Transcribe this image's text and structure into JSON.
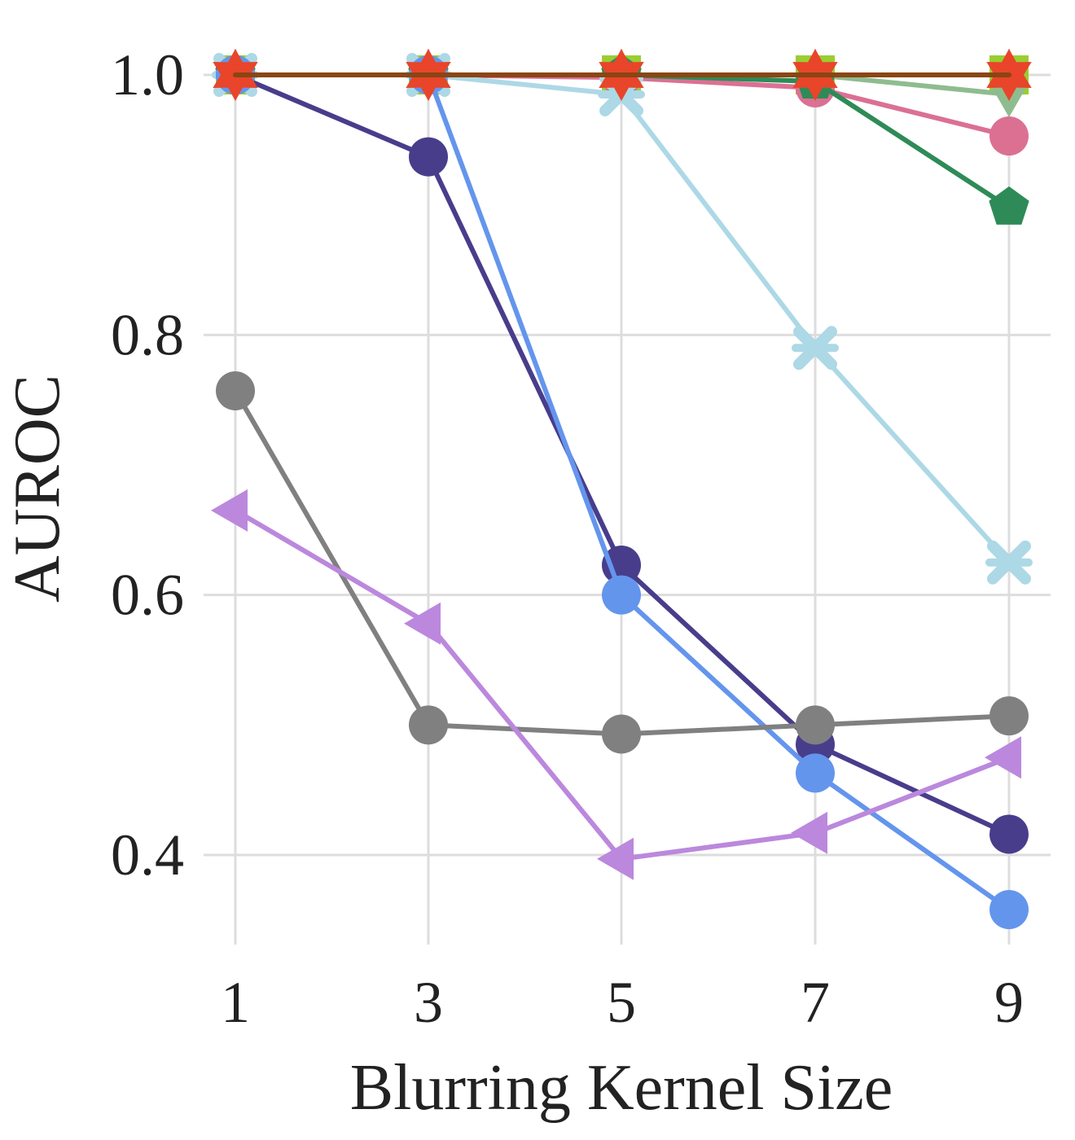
{
  "chart_data": {
    "type": "line",
    "xlabel": "Blurring Kernel Size",
    "ylabel": "AUROC",
    "x": [
      1,
      3,
      5,
      7,
      9
    ],
    "x_tick_labels": [
      "1",
      "3",
      "5",
      "7",
      "9"
    ],
    "y_ticks": [
      0.4,
      0.6,
      0.8,
      1.0
    ],
    "y_tick_labels": [
      "0.4",
      "0.6",
      "0.8",
      "1.0"
    ],
    "xlim": [
      0.8,
      9.4
    ],
    "ylim": [
      0.32,
      1.05
    ],
    "grid": true,
    "legend": "none",
    "series": [
      {
        "color": "#9acd32",
        "marker": "square",
        "values": [
          1.0,
          1.0,
          1.0,
          1.0,
          1.0
        ]
      },
      {
        "color": "#8fbc8f",
        "marker": "triangle-down",
        "values": [
          1.0,
          1.0,
          1.0,
          1.0,
          0.985
        ]
      },
      {
        "color": "#db7093",
        "marker": "circle",
        "values": [
          1.0,
          1.0,
          0.998,
          0.99,
          0.953
        ]
      },
      {
        "color": "#2e8b57",
        "marker": "pentagon",
        "values": [
          1.0,
          1.0,
          1.0,
          0.995,
          0.898
        ]
      },
      {
        "color": "#add8e6",
        "marker": "x-cross",
        "values": [
          1.0,
          1.0,
          0.985,
          0.79,
          0.625
        ]
      },
      {
        "color": "#483d8b",
        "marker": "circle",
        "values": [
          1.0,
          0.937,
          0.623,
          0.485,
          0.416
        ]
      },
      {
        "color": "#6495ed",
        "marker": "circle",
        "values": [
          1.0,
          1.0,
          0.6,
          0.463,
          0.358
        ]
      },
      {
        "color": "#808080",
        "marker": "circle",
        "values": [
          0.757,
          0.5,
          0.493,
          0.5,
          0.507
        ]
      },
      {
        "color": "#bb88dd",
        "marker": "triangle-left",
        "values": [
          0.665,
          0.578,
          0.397,
          0.417,
          0.475
        ]
      },
      {
        "color": "#e8452a",
        "marker": "star",
        "values": [
          1.0,
          1.0,
          1.0,
          1.0,
          1.0
        ]
      },
      {
        "color": "#8b4513",
        "marker": "none",
        "values": [
          1.0,
          1.0,
          1.0,
          1.0,
          1.0
        ]
      }
    ]
  }
}
